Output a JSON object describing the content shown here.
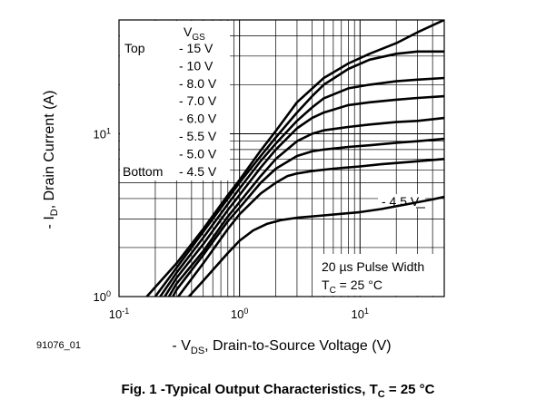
{
  "chart_data": {
    "type": "line",
    "xscale": "log",
    "yscale": "log",
    "xlim": [
      0.1,
      50
    ],
    "ylim": [
      1,
      50
    ],
    "grid": true,
    "xticks": [
      {
        "value": 0.1,
        "base": "10",
        "exp": "-1"
      },
      {
        "value": 1,
        "base": "10",
        "exp": "0"
      },
      {
        "value": 10,
        "base": "10",
        "exp": "1"
      }
    ],
    "yticks": [
      {
        "value": 1,
        "base": "10",
        "exp": "0"
      },
      {
        "value": 10,
        "base": "10",
        "exp": "1"
      }
    ],
    "xlabel": {
      "prefix": "- V",
      "sub": "DS",
      "suffix": ", Drain-to-Source Voltage (V)"
    },
    "ylabel": {
      "prefix": "- I",
      "sub": "D",
      "suffix": ", Drain Current (A)"
    },
    "legend": {
      "header": {
        "main": "V",
        "sub": "GS"
      },
      "top_word": "Top",
      "bottom_word": "Bottom",
      "entries": [
        "- 15 V",
        "- 10 V",
        "- 8.0 V",
        "- 7.0 V",
        "- 6.0 V",
        "- 5.5 V",
        "- 5.0 V",
        "- 4.5 V"
      ]
    },
    "curve_label": "- 4.5 V",
    "notes": {
      "line1": "20 µs Pulse Width",
      "line2_main": "T",
      "line2_sub": "C",
      "line2_rest": " = 25 °C"
    },
    "series": [
      {
        "x": [
          0.17,
          0.3,
          0.5,
          0.8,
          1,
          1.5,
          2,
          3,
          5,
          8,
          12,
          20,
          30,
          50
        ],
        "y": [
          1.0,
          1.6,
          2.6,
          4.2,
          5.2,
          7.9,
          10.4,
          15.6,
          22,
          27,
          31,
          36,
          42,
          50
        ]
      },
      {
        "x": [
          0.2,
          0.3,
          0.5,
          0.8,
          1,
          1.5,
          2,
          3,
          4,
          5,
          8,
          12,
          20,
          30,
          50
        ],
        "y": [
          1.0,
          1.5,
          2.5,
          4.0,
          5.0,
          7.3,
          9.5,
          13.5,
          17,
          20,
          25,
          28.5,
          31,
          32,
          32
        ]
      },
      {
        "x": [
          0.22,
          0.3,
          0.5,
          0.8,
          1,
          1.5,
          2,
          3,
          4,
          5,
          8,
          12,
          20,
          30,
          50
        ],
        "y": [
          1.0,
          1.4,
          2.3,
          3.7,
          4.6,
          6.8,
          8.7,
          12,
          14.5,
          16.5,
          19,
          20,
          21,
          21.5,
          22
        ]
      },
      {
        "x": [
          0.24,
          0.3,
          0.5,
          0.8,
          1,
          1.5,
          2,
          3,
          4,
          5,
          8,
          12,
          20,
          30,
          50
        ],
        "y": [
          1.0,
          1.3,
          2.1,
          3.4,
          4.2,
          6.2,
          8.0,
          10.8,
          12.5,
          13.5,
          15,
          15.6,
          16.2,
          16.6,
          17
        ]
      },
      {
        "x": [
          0.26,
          0.3,
          0.5,
          0.8,
          1,
          1.5,
          2,
          3,
          4,
          5,
          8,
          12,
          20,
          30,
          50
        ],
        "y": [
          1.0,
          1.2,
          1.9,
          3.1,
          3.8,
          5.5,
          7.0,
          9.0,
          10,
          10.5,
          11,
          11.4,
          11.8,
          12,
          12.5
        ]
      },
      {
        "x": [
          0.28,
          0.3,
          0.5,
          0.8,
          1,
          1.5,
          2,
          3,
          4,
          5,
          8,
          12,
          20,
          30,
          50
        ],
        "y": [
          1.0,
          1.1,
          1.8,
          2.9,
          3.5,
          5.0,
          6.1,
          7.3,
          7.8,
          8.0,
          8.3,
          8.5,
          8.8,
          9.0,
          9.3
        ]
      },
      {
        "x": [
          0.31,
          0.5,
          0.8,
          1,
          1.5,
          2,
          2.5,
          3,
          4,
          6,
          10,
          15,
          25,
          50
        ],
        "y": [
          1.0,
          1.6,
          2.6,
          3.2,
          4.3,
          5.0,
          5.5,
          5.7,
          5.9,
          6.1,
          6.3,
          6.5,
          6.7,
          7.0
        ]
      },
      {
        "x": [
          0.38,
          0.5,
          0.8,
          1,
          1.3,
          1.7,
          2.2,
          3,
          5,
          10,
          15,
          25,
          40,
          50
        ],
        "y": [
          1.0,
          1.25,
          1.85,
          2.2,
          2.55,
          2.8,
          2.95,
          3.05,
          3.15,
          3.3,
          3.45,
          3.7,
          3.95,
          4.1
        ]
      }
    ]
  },
  "figure": {
    "doc_number": "91076_01",
    "caption_main": "Fig. 1 -Typical Output Characteristics, T",
    "caption_sub": "C",
    "caption_rest": " = 25 °C"
  }
}
